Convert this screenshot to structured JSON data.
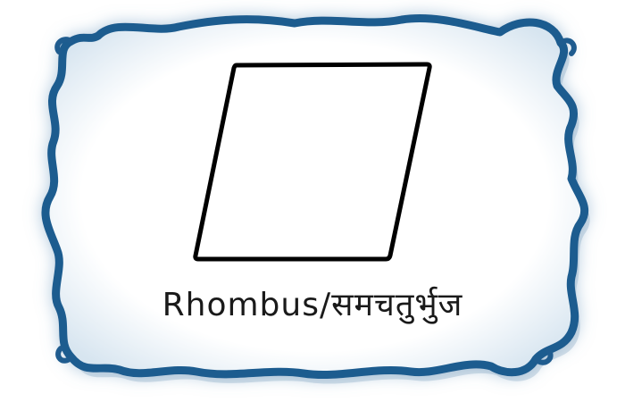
{
  "card": {
    "shape_name": "Rhombus",
    "separator": "/",
    "shape_name_hindi": "समचतुर्भुज"
  },
  "colors": {
    "frame_border": "#1f5c8f",
    "frame_glow": "#a9c4da",
    "card_fill": "#ffffff",
    "shape_stroke": "#000000",
    "text": "#1a1a1a"
  },
  "icons": {
    "frame": "decorative-scalloped-frame",
    "shape": "rhombus-outline"
  }
}
